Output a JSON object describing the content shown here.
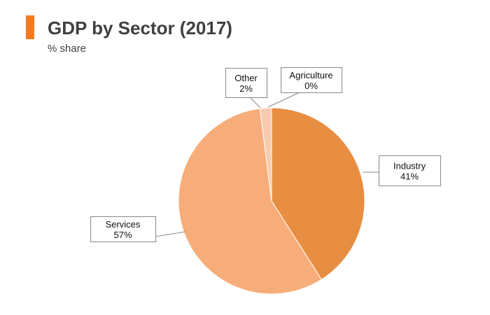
{
  "header": {
    "accent_color": "#f47a20",
    "title": "GDP by Sector (2017)",
    "subtitle": "% share"
  },
  "chart_data": {
    "type": "pie",
    "title": "GDP by Sector (2017)",
    "subtitle": "% share",
    "categories": [
      "Agriculture",
      "Industry",
      "Services",
      "Other"
    ],
    "values": [
      0,
      41,
      57,
      2
    ],
    "labels": [
      "0%",
      "41%",
      "57%",
      "2%"
    ],
    "colors": [
      "#e48a3c",
      "#e88e42",
      "#f7ad7a",
      "#f8cbb0"
    ],
    "start": "12 o'clock, clockwise",
    "legend": "none (callout labels)"
  }
}
